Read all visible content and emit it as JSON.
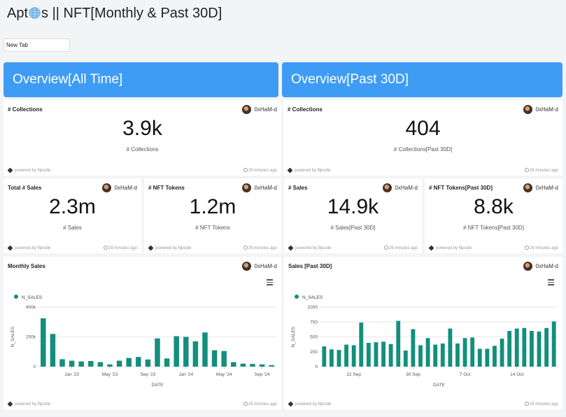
{
  "title": {
    "prefix": "Apt",
    "suffix": "s || NFT[Monthly & Past 30D]"
  },
  "tab": {
    "label": "New Tab"
  },
  "headers": {
    "all_time": "Overview[All Time]",
    "past_30d": "Overview[Past 30D]"
  },
  "author": "0xHaM-d",
  "powered_by": "powered by flipside",
  "updated": "29 minutes ago",
  "cards": {
    "collections_all": {
      "title": "# Collections",
      "value": "3.9k",
      "label": "# Collections"
    },
    "collections_30d": {
      "title": "# Collections",
      "value": "404",
      "label": "# Collections[Past 30D]"
    },
    "sales_all": {
      "title": "Total # Sales",
      "value": "2.3m",
      "label": "# Sales"
    },
    "tokens_all": {
      "title": "# NFT Tokens",
      "value": "1.2m",
      "label": "# NFT Tokens"
    },
    "sales_30d": {
      "title": "# Sales",
      "value": "14.9k",
      "label": "# Sales[Past 30D]"
    },
    "tokens_30d": {
      "title": "# NFT Tokens[Past 30D]",
      "value": "8.8k",
      "label": "# NFT Tokens[Past 30D]"
    }
  },
  "colors": {
    "accent": "#3f9cf4",
    "bar": "#138f7c"
  },
  "chart_data": [
    {
      "type": "bar",
      "title": "Monthly Sales",
      "legend": "N_SALES",
      "xlabel": "DATE",
      "ylabel": "N_SALES",
      "ylim": [
        0,
        400000
      ],
      "yticks": [
        0,
        200000,
        400000
      ],
      "ytick_labels": [
        "0",
        "200k",
        "400k"
      ],
      "xtick_labels": [
        {
          "label": "Jan '23",
          "index": 3
        },
        {
          "label": "May '23",
          "index": 7
        },
        {
          "label": "Sep '23",
          "index": 11
        },
        {
          "label": "Jan '24",
          "index": 15
        },
        {
          "label": "May '24",
          "index": 19
        },
        {
          "label": "Sep '24",
          "index": 23
        }
      ],
      "values": [
        325000,
        220000,
        50000,
        40000,
        35000,
        38000,
        30000,
        15000,
        40000,
        58000,
        65000,
        48000,
        190000,
        55000,
        205000,
        200000,
        170000,
        230000,
        110000,
        105000,
        30000,
        20000,
        18000,
        15000,
        10000
      ]
    },
    {
      "type": "bar",
      "title": "Sales [Past 30D]",
      "legend": "N_SALES",
      "xlabel": "DATE",
      "ylabel": "N_SALES",
      "ylim": [
        0,
        1000
      ],
      "yticks": [
        0,
        250,
        500,
        750,
        1000
      ],
      "ytick_labels": [
        "0",
        "250",
        "500",
        "750",
        "1000"
      ],
      "xtick_labels": [
        {
          "label": "22 Sep",
          "index": 4
        },
        {
          "label": "30 Sep",
          "index": 12
        },
        {
          "label": "7 Oct",
          "index": 19
        },
        {
          "label": "14 Oct",
          "index": 26
        }
      ],
      "values": [
        340,
        290,
        280,
        370,
        360,
        740,
        400,
        410,
        420,
        380,
        770,
        270,
        630,
        360,
        480,
        370,
        390,
        640,
        390,
        480,
        490,
        300,
        300,
        350,
        470,
        600,
        640,
        650,
        600,
        590,
        650,
        760
      ]
    }
  ]
}
